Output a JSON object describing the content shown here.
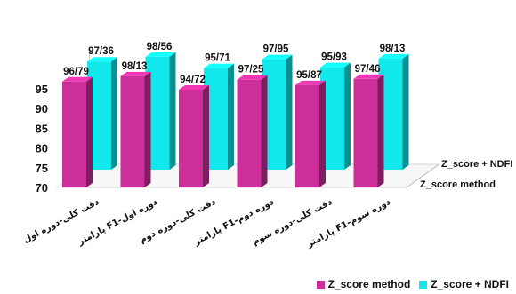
{
  "chart_data": {
    "type": "bar",
    "style": "3d-depth",
    "categories": [
      "دقت کلی-دوره اول",
      "پارامتر F1-دوره اول",
      "دقت کلی-دوره دوم",
      "پارامتر F1-دوره دوم",
      "دقت کلی-دوره سوم",
      "پارامتر F1-دوره سوم"
    ],
    "series": [
      {
        "name": "Z_score method",
        "color": "#cc2f99",
        "values": [
          96.79,
          98.13,
          94.72,
          97.25,
          95.87,
          97.46
        ],
        "labels": [
          "96/79",
          "98/13",
          "94/72",
          "97/25",
          "95/87",
          "97/46"
        ]
      },
      {
        "name": "Z_score + NDFI",
        "color": "#11e8ec",
        "values": [
          97.36,
          98.56,
          95.71,
          97.95,
          95.93,
          98.13
        ],
        "labels": [
          "97/36",
          "98/56",
          "95/71",
          "97/95",
          "95/93",
          "98/13"
        ]
      }
    ],
    "yticks": [
      "70",
      "75",
      "80",
      "85",
      "90",
      "95"
    ],
    "ylim": [
      70,
      99
    ],
    "depth_axis_labels": [
      "Z_score + NDFI",
      "Z_score method"
    ],
    "legend_position": "bottom-right",
    "grid": false,
    "title": "",
    "xlabel": "",
    "ylabel": ""
  }
}
